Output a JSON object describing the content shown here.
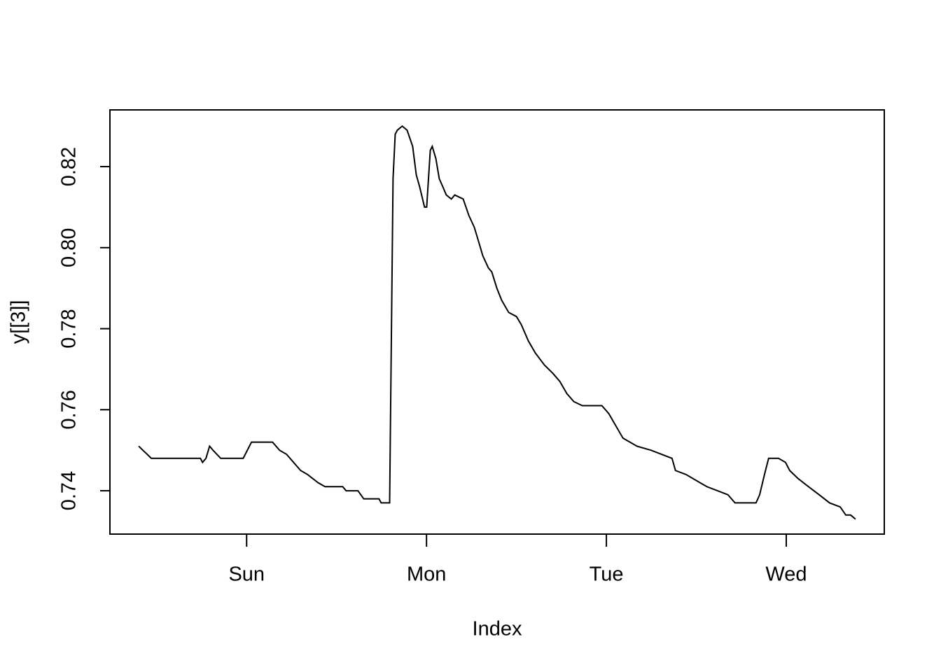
{
  "chart_data": {
    "type": "line",
    "x_label": "Index",
    "y_label": "y[[3]]",
    "x": [
      0.4,
      0.423,
      0.447,
      0.47,
      0.743,
      0.755,
      0.774,
      0.794,
      0.813,
      0.856,
      0.981,
      1.027,
      1.144,
      1.183,
      1.222,
      1.261,
      1.3,
      1.339,
      1.397,
      1.436,
      1.534,
      1.553,
      1.619,
      1.651,
      1.736,
      1.748,
      1.795,
      1.814,
      1.826,
      1.838,
      1.865,
      1.892,
      1.923,
      1.943,
      1.962,
      1.989,
      2.001,
      2.021,
      2.032,
      2.052,
      2.071,
      2.091,
      2.11,
      2.138,
      2.157,
      2.204,
      2.235,
      2.266,
      2.293,
      2.313,
      2.344,
      2.363,
      2.391,
      2.418,
      2.457,
      2.5,
      2.527,
      2.566,
      2.605,
      2.656,
      2.702,
      2.741,
      2.78,
      2.819,
      2.866,
      2.975,
      3.014,
      3.053,
      3.092,
      3.131,
      3.17,
      3.248,
      3.306,
      3.365,
      3.384,
      3.443,
      3.482,
      3.52,
      3.559,
      3.618,
      3.676,
      3.715,
      3.832,
      3.852,
      3.879,
      3.902,
      3.957,
      3.996,
      4.019,
      4.066,
      4.124,
      4.183,
      4.241,
      4.3,
      4.331,
      4.358,
      4.385
    ],
    "series": [
      {
        "color": "#000000",
        "values": [
          0.751,
          0.75,
          0.749,
          0.748,
          0.748,
          0.747,
          0.748,
          0.751,
          0.75,
          0.748,
          0.748,
          0.752,
          0.752,
          0.75,
          0.749,
          0.747,
          0.745,
          0.744,
          0.742,
          0.741,
          0.741,
          0.74,
          0.74,
          0.738,
          0.738,
          0.737,
          0.737,
          0.817,
          0.828,
          0.829,
          0.83,
          0.829,
          0.825,
          0.818,
          0.815,
          0.81,
          0.81,
          0.824,
          0.825,
          0.822,
          0.817,
          0.815,
          0.813,
          0.812,
          0.813,
          0.812,
          0.808,
          0.805,
          0.801,
          0.798,
          0.795,
          0.794,
          0.79,
          0.787,
          0.784,
          0.783,
          0.781,
          0.777,
          0.774,
          0.771,
          0.769,
          0.767,
          0.764,
          0.762,
          0.761,
          0.761,
          0.759,
          0.756,
          0.753,
          0.752,
          0.751,
          0.75,
          0.749,
          0.748,
          0.745,
          0.744,
          0.743,
          0.742,
          0.741,
          0.74,
          0.739,
          0.737,
          0.737,
          0.739,
          0.744,
          0.748,
          0.748,
          0.747,
          0.745,
          0.743,
          0.741,
          0.739,
          0.737,
          0.736,
          0.734,
          0.734,
          0.733
        ]
      }
    ],
    "xlim": [
      0.24,
      4.545
    ],
    "xticks": [
      {
        "value": 1,
        "label": "Sun"
      },
      {
        "value": 2,
        "label": "Mon"
      },
      {
        "value": 3,
        "label": "Tue"
      },
      {
        "value": 4,
        "label": "Wed"
      }
    ],
    "ylim": [
      0.7293,
      0.834
    ],
    "yticks": [
      0.74,
      0.76,
      0.78,
      {
        "value": 0.8,
        "label": "0.80"
      },
      0.82
    ],
    "grid": false
  }
}
